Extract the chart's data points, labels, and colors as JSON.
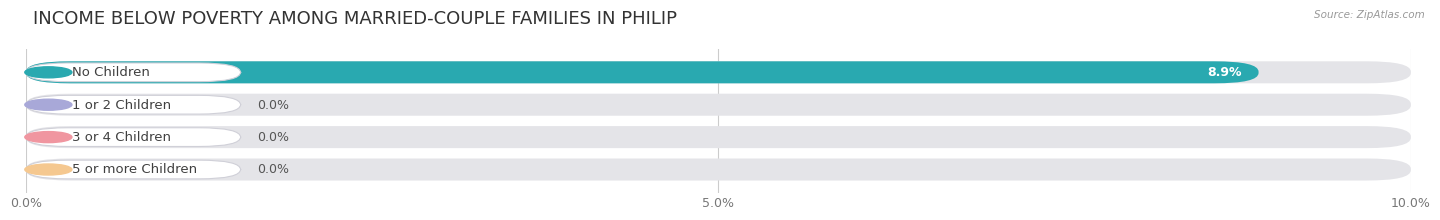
{
  "title": "INCOME BELOW POVERTY AMONG MARRIED-COUPLE FAMILIES IN PHILIP",
  "source": "Source: ZipAtlas.com",
  "categories": [
    "No Children",
    "1 or 2 Children",
    "3 or 4 Children",
    "5 or more Children"
  ],
  "values": [
    8.9,
    0.0,
    0.0,
    0.0
  ],
  "bar_colors": [
    "#29a9b0",
    "#a8a8d8",
    "#f096a0",
    "#f5c890"
  ],
  "xlim": [
    0,
    10.0
  ],
  "xticks": [
    0.0,
    5.0,
    10.0
  ],
  "xtick_labels": [
    "0.0%",
    "5.0%",
    "10.0%"
  ],
  "background_color": "#ffffff",
  "bar_bg_color": "#e4e4e8",
  "bar_bg_color2": "#ededf0",
  "title_fontsize": 13,
  "tick_fontsize": 9,
  "label_fontsize": 9.5,
  "value_fontsize": 9
}
